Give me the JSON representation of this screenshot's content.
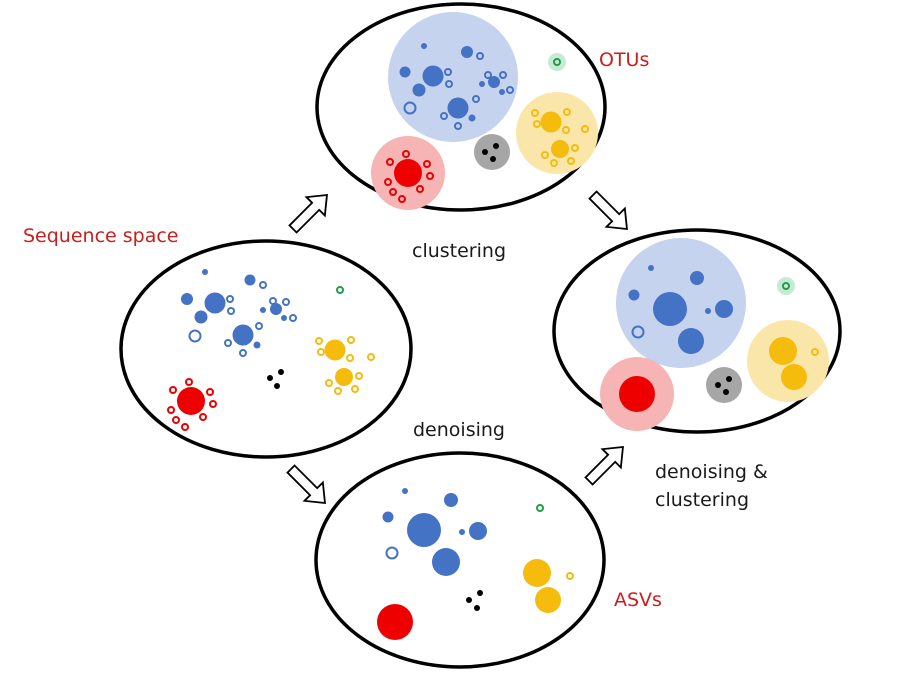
{
  "labels": {
    "sequence_space": "Sequence space",
    "otus": "OTUs",
    "clustering": "clustering",
    "denoising": "denoising",
    "denoising_clustering_line1": "denoising &",
    "denoising_clustering_line2": "clustering",
    "asvs": "ASVs"
  },
  "colors": {
    "blue": "#4472c4",
    "blue_halo": "#c5d3ee",
    "yellow": "#f6bc0d",
    "yellow_halo": "#fbe6a9",
    "red": "#ee0000",
    "red_halo": "#f6b4b4",
    "green": "#1f9c4b",
    "green_halo": "#c6ebd2",
    "black": "#000000",
    "gray_halo": "#a6a6a6"
  }
}
